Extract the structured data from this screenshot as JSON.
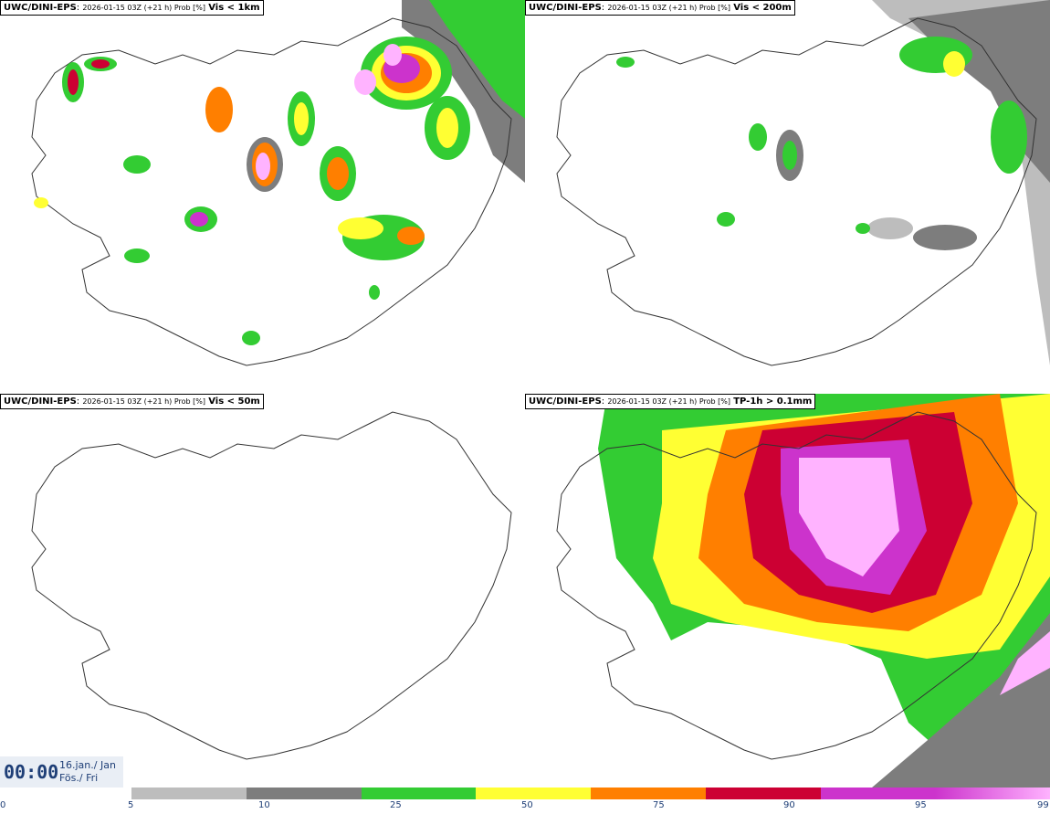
{
  "panels": [
    {
      "model": "UWC/DINI-EPS",
      "run": "2026-01-15 03Z (+21 h) Prob [%]",
      "variable": "Vis < 1km"
    },
    {
      "model": "UWC/DINI-EPS",
      "run": "2026-01-15 03Z (+21 h) Prob [%]",
      "variable": "Vis < 200m"
    },
    {
      "model": "UWC/DINI-EPS",
      "run": "2026-01-15 03Z (+21 h) Prob [%]",
      "variable": "Vis < 50m"
    },
    {
      "model": "UWC/DINI-EPS",
      "run": "2026-01-15 03Z (+21 h) Prob [%]",
      "variable": "TP-1h > 0.1mm"
    }
  ],
  "time": {
    "clock": "00:00",
    "date_line1": "16.jan./ Jan",
    "date_line2": "Fös./ Fri"
  },
  "legend": {
    "ticks": [
      "0",
      "5",
      "10",
      "25",
      "50",
      "75",
      "90",
      "95",
      "99"
    ],
    "colors": [
      "#bdbdbd",
      "#7d7d7d",
      "#33cc33",
      "#ffff33",
      "#ff7f00",
      "#cc0033",
      "#cc33cc",
      "#ffb3ff"
    ]
  }
}
